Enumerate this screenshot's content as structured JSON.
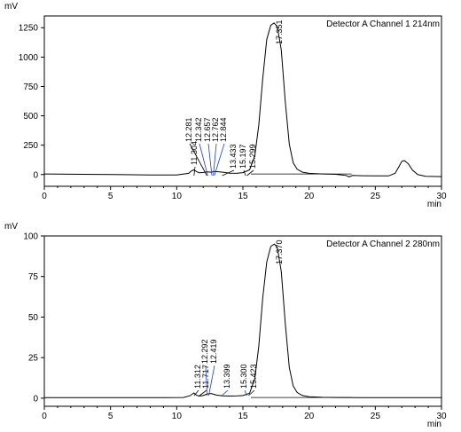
{
  "chart_data": [
    {
      "type": "line",
      "title": "Detector A Channel 1 214nm",
      "ylabel": "mV",
      "xlabel": "min",
      "xlim": [
        0,
        30
      ],
      "ylim": [
        -100,
        1350
      ],
      "x_ticks": [
        0,
        5,
        10,
        15,
        20,
        25,
        30
      ],
      "y_ticks": [
        0,
        250,
        500,
        750,
        1000,
        1250
      ],
      "series": [
        {
          "x": [
            0,
            2,
            4,
            6,
            8,
            10,
            10.9,
            11.1,
            11.3,
            11.5,
            11.7,
            12.0,
            12.3,
            12.6,
            12.9,
            13.2,
            13.5,
            14.0,
            14.5,
            15.0,
            15.5,
            15.9,
            16.2,
            16.5,
            16.8,
            17.1,
            17.35,
            17.6,
            17.9,
            18.2,
            18.5,
            18.8,
            19.1,
            19.5,
            20.0,
            21.0,
            22.0,
            22.8,
            23.0,
            23.3,
            24.0,
            25.0,
            26.0,
            26.5,
            26.8,
            27.0,
            27.2,
            27.5,
            27.8,
            28.2,
            28.8,
            30
          ],
          "y": [
            5,
            3,
            1,
            -1,
            -3,
            -4,
            10,
            30,
            40,
            25,
            15,
            18,
            22,
            20,
            26,
            23,
            20,
            12,
            10,
            16,
            40,
            160,
            420,
            820,
            1150,
            1270,
            1290,
            1260,
            1060,
            620,
            260,
            100,
            45,
            20,
            10,
            5,
            2,
            -8,
            -20,
            -8,
            -10,
            -12,
            -12,
            10,
            70,
            112,
            118,
            90,
            40,
            0,
            -15,
            -18
          ]
        }
      ],
      "peaks": [
        "11.304",
        "12.281",
        "12.342",
        "12.657",
        "12.762",
        "12.844",
        "13.433",
        "15.197",
        "15.299",
        "17.351"
      ]
    },
    {
      "type": "line",
      "title": "Detector A Channel 2 280nm",
      "ylabel": "mV",
      "xlabel": "min",
      "xlim": [
        0,
        30
      ],
      "ylim": [
        -5,
        100
      ],
      "x_ticks": [
        0,
        5,
        10,
        15,
        20,
        25,
        30
      ],
      "y_ticks": [
        0,
        25,
        50,
        75,
        100
      ],
      "series": [
        {
          "x": [
            0,
            3,
            6,
            9,
            10.5,
            11.0,
            11.3,
            11.5,
            11.7,
            12.0,
            12.3,
            12.6,
            13.0,
            13.4,
            14.0,
            14.6,
            15.0,
            15.5,
            15.9,
            16.2,
            16.5,
            16.8,
            17.1,
            17.37,
            17.6,
            17.9,
            18.2,
            18.5,
            18.8,
            19.1,
            19.5,
            20.0,
            21.0,
            22.0,
            24.0,
            26.0,
            28.0,
            30.0
          ],
          "y": [
            0.3,
            0.3,
            0.3,
            0.3,
            0.4,
            1.5,
            3.2,
            1.8,
            1.3,
            1.6,
            2.6,
            2.9,
            1.9,
            1.5,
            1.3,
            1.4,
            1.6,
            3.0,
            12.0,
            32.0,
            62.0,
            84.0,
            93.5,
            95.0,
            93.0,
            78.0,
            46.0,
            19.0,
            7.5,
            3.5,
            1.6,
            0.9,
            0.5,
            0.4,
            0.3,
            0.3,
            0.3,
            0.3
          ]
        }
      ],
      "peaks": [
        "11.312",
        "11.717",
        "12.292",
        "12.419",
        "13.399",
        "15.300",
        "15.423",
        "17.370"
      ]
    }
  ]
}
